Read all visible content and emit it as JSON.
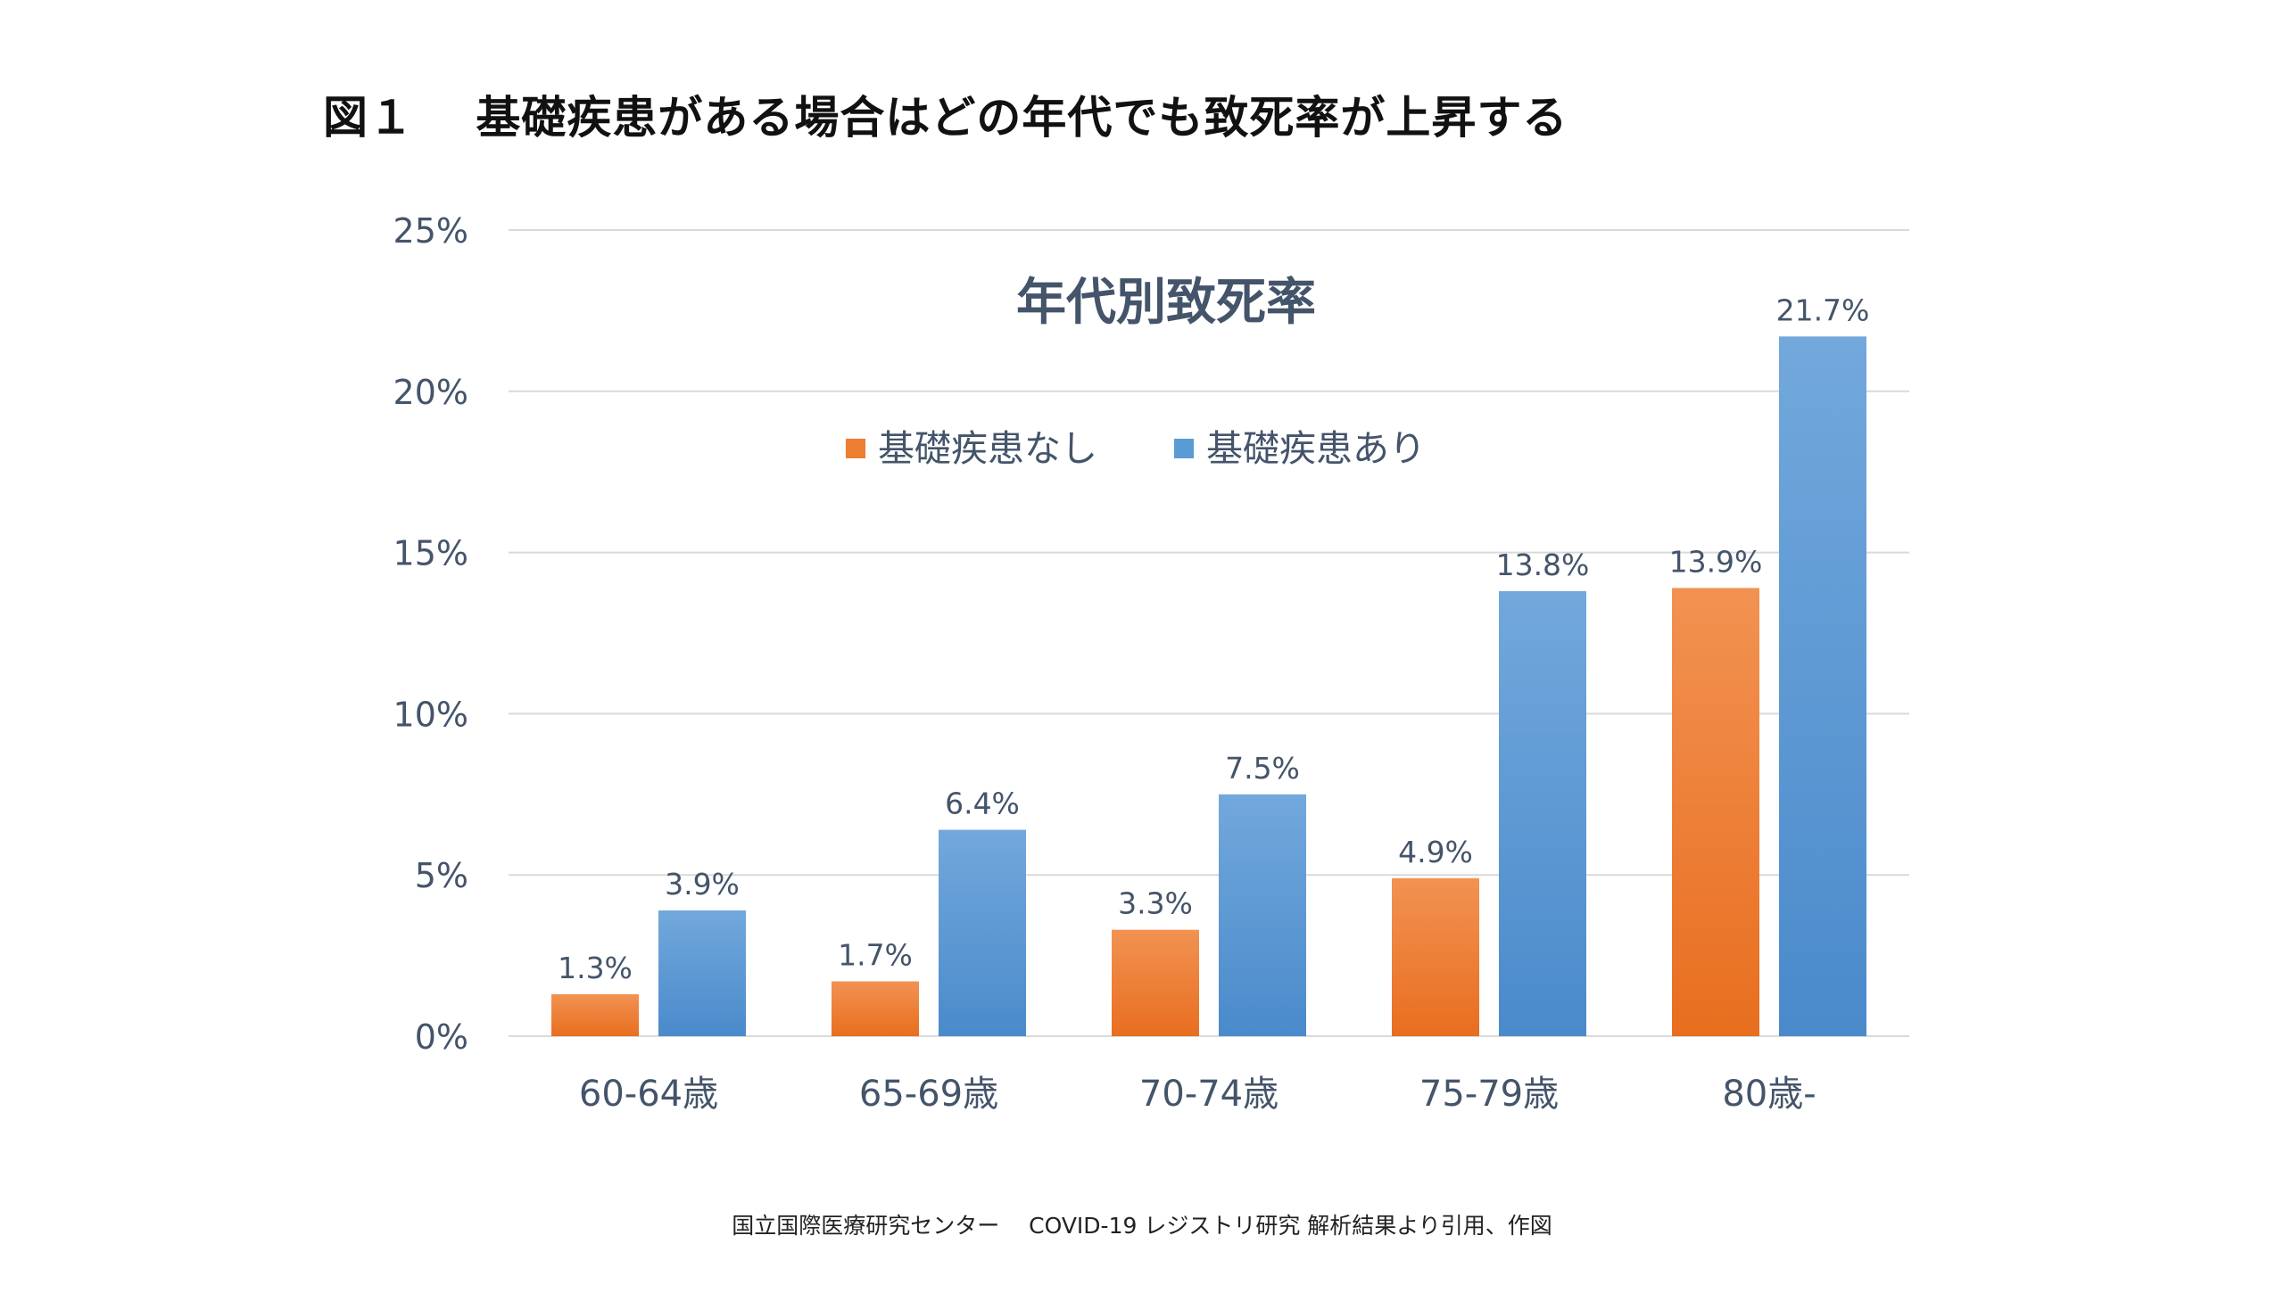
{
  "figure_title": "図１　 基礎疾患がある場合はどの年代でも致死率が上昇する",
  "source_note": "国立国際医療研究センター　 COVID-19 レジストリ研究 解析結果より引用、作図",
  "colors": {
    "series_none": "#ED7D31",
    "series_with": "#5B9BD5",
    "axis_text": "#44546A",
    "grid": "#D9D9D9"
  },
  "chart_data": {
    "type": "bar",
    "title": "年代別致死率",
    "categories": [
      "60-64歳",
      "65-69歳",
      "70-74歳",
      "75-79歳",
      "80歳-"
    ],
    "series": [
      {
        "name": "基礎疾患なし",
        "values": [
          1.3,
          1.7,
          3.3,
          4.9,
          13.9
        ],
        "labels": [
          "1.3%",
          "1.7%",
          "3.3%",
          "4.9%",
          "13.9%"
        ]
      },
      {
        "name": "基礎疾患あり",
        "values": [
          3.9,
          6.4,
          7.5,
          13.8,
          21.7
        ],
        "labels": [
          "3.9%",
          "6.4%",
          "7.5%",
          "13.8%",
          "21.7%"
        ]
      }
    ],
    "ylim": [
      0,
      25
    ],
    "yticks": [
      "0%",
      "5%",
      "10%",
      "15%",
      "20%",
      "25%"
    ],
    "xlabel": "",
    "ylabel": "",
    "grid": true,
    "legend_position": "top-center"
  }
}
